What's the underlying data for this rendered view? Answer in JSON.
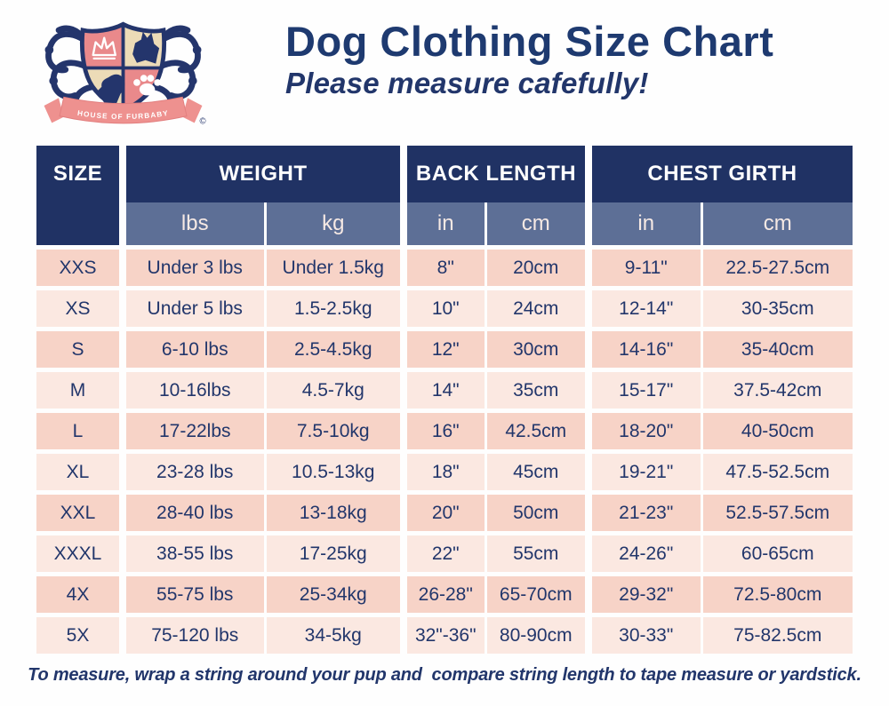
{
  "logo": {
    "banner_text": "HOUSE OF FURBABY",
    "copyright": "©"
  },
  "header": {
    "title": "Dog Clothing Size Chart",
    "subtitle": "Please measure cafefully!"
  },
  "chart_data": {
    "type": "table",
    "title": "Dog Clothing Size Chart",
    "group_headers": [
      "SIZE",
      "WEIGHT",
      "BACK LENGTH",
      "CHEST GIRTH"
    ],
    "units": [
      "lbs",
      "kg",
      "in",
      "cm",
      "in",
      "cm"
    ],
    "columns": [
      "SIZE",
      "WEIGHT lbs",
      "WEIGHT kg",
      "BACK LENGTH in",
      "BACK LENGTH cm",
      "CHEST GIRTH in",
      "CHEST GIRTH cm"
    ],
    "rows": [
      [
        "XXS",
        "Under 3 lbs",
        "Under 1.5kg",
        "8\"",
        "20cm",
        "9-11\"",
        "22.5-27.5cm"
      ],
      [
        "XS",
        "Under 5 lbs",
        "1.5-2.5kg",
        "10\"",
        "24cm",
        "12-14\"",
        "30-35cm"
      ],
      [
        "S",
        "6-10 lbs",
        "2.5-4.5kg",
        "12\"",
        "30cm",
        "14-16\"",
        "35-40cm"
      ],
      [
        "M",
        "10-16lbs",
        "4.5-7kg",
        "14\"",
        "35cm",
        "15-17\"",
        "37.5-42cm"
      ],
      [
        "L",
        "17-22lbs",
        "7.5-10kg",
        "16\"",
        "42.5cm",
        "18-20\"",
        "40-50cm"
      ],
      [
        "XL",
        "23-28 lbs",
        "10.5-13kg",
        "18\"",
        "45cm",
        "19-21\"",
        "47.5-52.5cm"
      ],
      [
        "XXL",
        "28-40 lbs",
        "13-18kg",
        "20\"",
        "50cm",
        "21-23\"",
        "52.5-57.5cm"
      ],
      [
        "XXXL",
        "38-55 lbs",
        "17-25kg",
        "22\"",
        "55cm",
        "24-26\"",
        "60-65cm"
      ],
      [
        "4X",
        "55-75 lbs",
        "25-34kg",
        "26-28\"",
        "65-70cm",
        "29-32\"",
        "72.5-80cm"
      ],
      [
        "5X",
        "75-120 lbs",
        "34-5kg",
        "32\"-36\"",
        "80-90cm",
        "30-33\"",
        "75-82.5cm"
      ]
    ]
  },
  "footer": {
    "note": "To measure, wrap a string around your pup and  compare string length to tape measure or yardstick."
  },
  "colors": {
    "header_navy": "#203264",
    "subheader_slate": "#5d6f96",
    "row_dark_pink": "#f7d3c7",
    "row_light_pink": "#fbe8e1",
    "text_navy": "#22366b",
    "logo_salmon": "#e9898b",
    "logo_cream": "#ecdbb7",
    "logo_ribbon": "#ee918f"
  }
}
